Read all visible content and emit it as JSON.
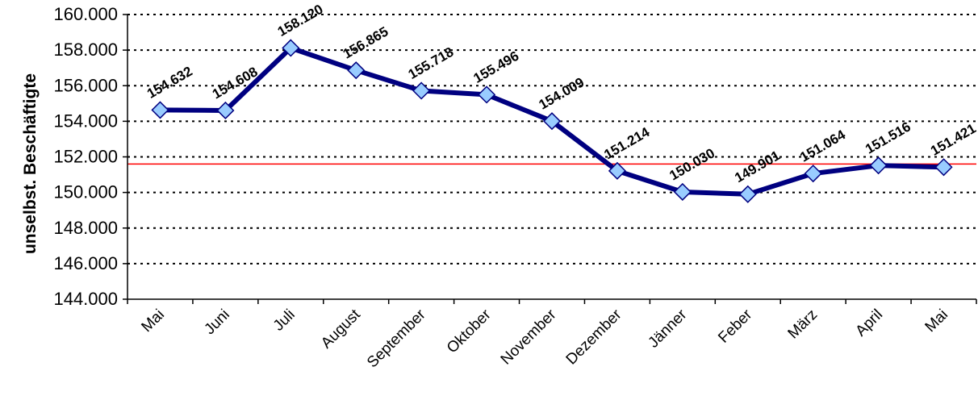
{
  "chart_data": {
    "type": "line",
    "ylabel": "unselbst. Beschäftigte",
    "categories": [
      "Mai",
      "Juni",
      "Juli",
      "August",
      "September",
      "Oktober",
      "November",
      "Dezember",
      "Jänner",
      "Feber",
      "März",
      "April",
      "Mai"
    ],
    "series": [
      {
        "values": [
          154632,
          154608,
          158120,
          156865,
          155718,
          155496,
          154009,
          151214,
          150030,
          149901,
          151064,
          151516,
          151421
        ],
        "data_labels": [
          "154.632",
          "154.608",
          "158.120",
          "156.865",
          "155.718",
          "155.496",
          "154.009",
          "151.214",
          "150.030",
          "149.901",
          "151.064",
          "151.516",
          "151.421"
        ],
        "line_color": "#000080",
        "marker_color": "#99CCFF",
        "marker": "diamond"
      }
    ],
    "reference_line": {
      "value": 151600,
      "color": "#FF0000"
    },
    "ylim": [
      144000,
      160000
    ],
    "yticks": [
      144000,
      146000,
      148000,
      150000,
      152000,
      154000,
      156000,
      158000,
      160000
    ],
    "ytick_labels": [
      "144.000",
      "146.000",
      "148.000",
      "150.000",
      "152.000",
      "154.000",
      "156.000",
      "158.000",
      "160.000"
    ],
    "grid": "horizontal dotted",
    "legend": "none"
  }
}
